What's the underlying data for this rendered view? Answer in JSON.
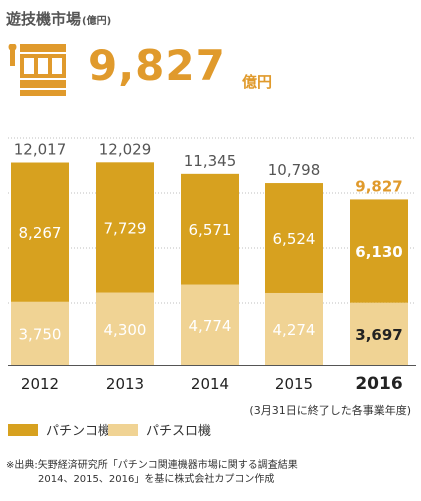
{
  "header": {
    "title": "遊技機市場",
    "unit": "(億円)",
    "total_value": "9,827",
    "total_unit": "億円"
  },
  "colors": {
    "pachinko": "#d7a11f",
    "pachislot": "#f0d394",
    "accent": "#e09a2c",
    "grid": "#bfbfbf"
  },
  "chart_data": {
    "type": "bar",
    "stacked": true,
    "categories": [
      "2012",
      "2013",
      "2014",
      "2015",
      "2016"
    ],
    "series": [
      {
        "name": "パチスロ機",
        "values": [
          3750,
          4300,
          4774,
          4274,
          3697
        ],
        "labels": [
          "3,750",
          "4,300",
          "4,774",
          "4,274",
          "3,697"
        ]
      },
      {
        "name": "パチンコ機",
        "values": [
          8267,
          7729,
          6571,
          6524,
          6130
        ],
        "labels": [
          "8,267",
          "7,729",
          "6,571",
          "6,524",
          "6,130"
        ]
      }
    ],
    "totals": [
      12017,
      12029,
      11345,
      10798,
      9827
    ],
    "total_labels": [
      "12,017",
      "12,029",
      "11,345",
      "10,798",
      "9,827"
    ],
    "highlight_category": "2016",
    "ylim": [
      0,
      14000
    ],
    "grid": true,
    "legend_position": "bottom-left"
  },
  "legend": {
    "pachinko": "パチンコ機",
    "pachislot": "パチスロ機"
  },
  "notes": {
    "fiscal_year": "(3月31日に終了した各事業年度)",
    "source_line1": "※出典:矢野経済研究所「パチンコ関連機器市場に関する調査結果",
    "source_line2": "2014、2015、2016」を基に株式会社カプコン作成"
  }
}
